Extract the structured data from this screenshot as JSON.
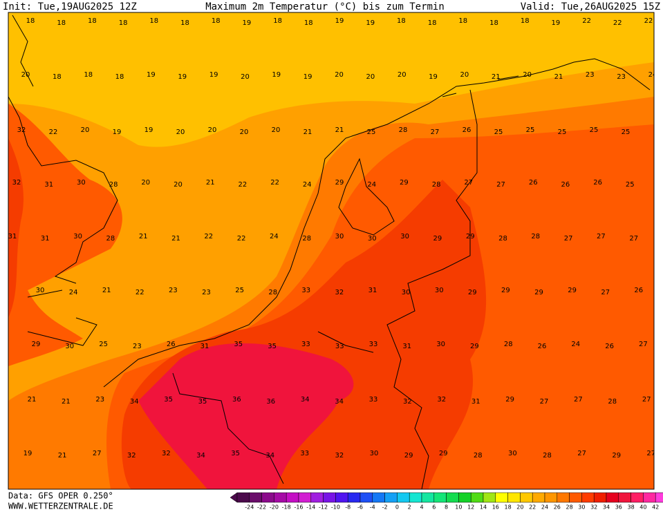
{
  "header": {
    "init": "Init: Tue,19AUG2025 12Z",
    "title": "Maximum 2m Temperatur (°C) bis zum Termin",
    "valid": "Valid: Tue,26AUG2025 15Z"
  },
  "map": {
    "rows": [
      [
        18,
        18,
        18,
        18,
        18,
        18,
        18,
        19,
        18,
        18,
        19,
        19,
        18,
        18,
        18,
        18,
        18,
        19,
        22,
        22,
        22
      ],
      [
        20,
        18,
        18,
        18,
        19,
        19,
        19,
        20,
        19,
        19,
        20,
        20,
        20,
        19,
        20,
        21,
        20,
        21,
        23,
        23,
        24
      ],
      [
        32,
        22,
        20,
        19,
        19,
        20,
        20,
        20,
        20,
        21,
        21,
        25,
        28,
        27,
        26,
        25,
        25,
        25,
        25,
        25
      ],
      [
        32,
        31,
        30,
        28,
        20,
        20,
        21,
        22,
        22,
        24,
        29,
        24,
        29,
        28,
        27,
        27,
        26,
        26,
        26,
        25
      ],
      [
        31,
        31,
        30,
        28,
        21,
        21,
        22,
        22,
        24,
        28,
        30,
        30,
        30,
        29,
        29,
        28,
        28,
        27,
        27,
        27
      ],
      [
        30,
        24,
        21,
        22,
        23,
        23,
        25,
        28,
        33,
        32,
        31,
        30,
        30,
        29,
        29,
        29,
        29,
        27,
        26
      ],
      [
        29,
        30,
        25,
        23,
        26,
        31,
        35,
        35,
        33,
        33,
        33,
        31,
        30,
        29,
        28,
        26,
        24,
        26,
        27
      ],
      [
        21,
        21,
        23,
        34,
        35,
        35,
        36,
        36,
        34,
        34,
        33,
        32,
        32,
        31,
        29,
        27,
        27,
        28,
        27
      ],
      [
        19,
        21,
        27,
        32,
        32,
        34,
        35,
        34,
        33,
        32,
        30,
        29,
        29,
        28,
        30,
        28,
        27,
        29,
        27
      ]
    ]
  },
  "footer": {
    "source": "Data: GFS OPER 0.250°",
    "site": "WWW.WETTERZENTRALE.DE"
  },
  "scale": {
    "labels": [
      -24,
      -22,
      -20,
      -18,
      -16,
      -14,
      -12,
      -10,
      -8,
      -6,
      -4,
      -2,
      0,
      2,
      4,
      6,
      8,
      10,
      12,
      14,
      16,
      18,
      20,
      22,
      24,
      26,
      28,
      30,
      32,
      34,
      36,
      38,
      40,
      42
    ],
    "colors": [
      "#4b0a4b",
      "#6a0d6a",
      "#8b0a8b",
      "#a50aa5",
      "#c40ec4",
      "#d21ed2",
      "#a01ee0",
      "#7814e6",
      "#5014f0",
      "#2828f0",
      "#1e50f5",
      "#1478f5",
      "#14a0f5",
      "#14c8f0",
      "#14e6d2",
      "#14e6a0",
      "#14e678",
      "#14dc50",
      "#14d228",
      "#50dc14",
      "#a0e614",
      "#ffff00",
      "#ffe600",
      "#ffc800",
      "#ffaa00",
      "#ff9600",
      "#ff7800",
      "#ff5a00",
      "#ff3c00",
      "#f01e00",
      "#e6001e",
      "#f0143c",
      "#ff1e64",
      "#ff28a0",
      "#ff3cdc"
    ]
  }
}
